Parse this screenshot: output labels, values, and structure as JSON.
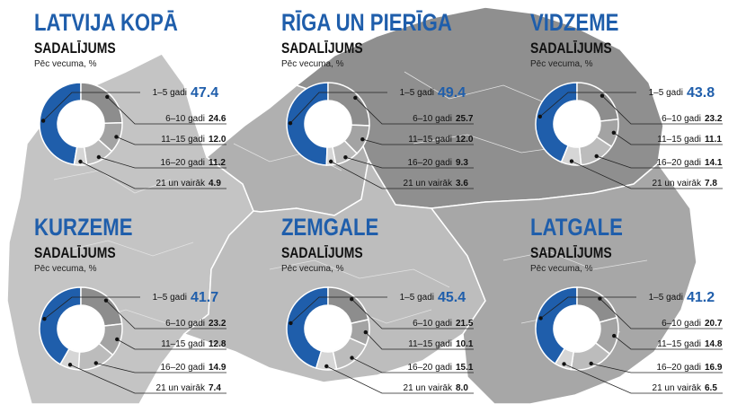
{
  "theme": {
    "accent": "#1f5eab",
    "slice_colors": [
      "#1f5eab",
      "#8d8d8d",
      "#a3a3a3",
      "#bcbcbc",
      "#d6d6d6"
    ]
  },
  "common": {
    "subtitle": "SADALĪJUMS",
    "note": "Pēc vecuma, %"
  },
  "chart_data": [
    {
      "type": "pie",
      "title": "LATVIJA KOPĀ",
      "subtitle": "SADALĪJUMS",
      "note": "Pēc vecuma, %",
      "categories": [
        "1–5 gadi",
        "6–10 gadi",
        "11–15 gadi",
        "16–20 gadi",
        "21 un vairāk"
      ],
      "values": [
        47.4,
        24.6,
        12.0,
        11.2,
        4.9
      ],
      "value_labels": [
        "47.4",
        "24.6",
        "12.0",
        "11.2",
        "4.9"
      ]
    },
    {
      "type": "pie",
      "title": "RĪGA UN PIERĪGA",
      "subtitle": "SADALĪJUMS",
      "note": "Pēc vecuma, %",
      "categories": [
        "1–5 gadi",
        "6–10 gadi",
        "11–15 gadi",
        "16–20 gadi",
        "21 un vairāk"
      ],
      "values": [
        49.4,
        25.7,
        12.0,
        9.3,
        3.6
      ],
      "value_labels": [
        "49.4",
        "25.7",
        "12.0",
        "9.3",
        "3.6"
      ]
    },
    {
      "type": "pie",
      "title": "VIDZEME",
      "subtitle": "SADALĪJUMS",
      "note": "Pēc vecuma, %",
      "categories": [
        "1–5 gadi",
        "6–10 gadi",
        "11–15 gadi",
        "16–20 gadi",
        "21 un vairāk"
      ],
      "values": [
        43.8,
        23.2,
        11.1,
        14.1,
        7.8
      ],
      "value_labels": [
        "43.8",
        "23.2",
        "11.1",
        "14.1",
        "7.8"
      ]
    },
    {
      "type": "pie",
      "title": "KURZEME",
      "subtitle": "SADALĪJUMS",
      "note": "Pēc vecuma, %",
      "categories": [
        "1–5 gadi",
        "6–10 gadi",
        "11–15 gadi",
        "16–20 gadi",
        "21 un vairāk"
      ],
      "values": [
        41.7,
        23.2,
        12.8,
        14.9,
        7.4
      ],
      "value_labels": [
        "41.7",
        "23.2",
        "12.8",
        "14.9",
        "7.4"
      ]
    },
    {
      "type": "pie",
      "title": "ZEMGALE",
      "subtitle": "SADALĪJUMS",
      "note": "Pēc vecuma, %",
      "categories": [
        "1–5 gadi",
        "6–10 gadi",
        "11–15 gadi",
        "16–20 gadi",
        "21 un vairāk"
      ],
      "values": [
        45.4,
        21.5,
        10.1,
        15.1,
        8.0
      ],
      "value_labels": [
        "45.4",
        "21.5",
        "10.1",
        "15.1",
        "8.0"
      ]
    },
    {
      "type": "pie",
      "title": "LATGALE",
      "subtitle": "SADALĪJUMS",
      "note": "Pēc vecuma, %",
      "categories": [
        "1–5 gadi",
        "6–10 gadi",
        "11–15 gadi",
        "16–20 gadi",
        "21 un vairāk"
      ],
      "values": [
        41.2,
        20.7,
        14.8,
        16.9,
        6.5
      ],
      "value_labels": [
        "41.2",
        "20.7",
        "14.8",
        "16.9",
        "6.5"
      ]
    }
  ]
}
